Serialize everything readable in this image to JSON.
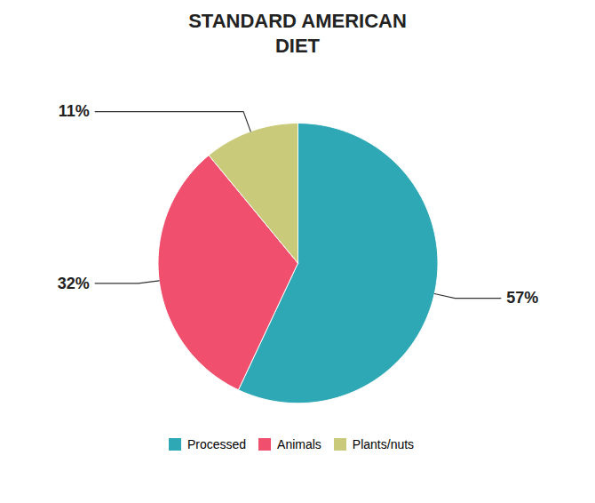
{
  "chart_data": {
    "type": "pie",
    "title": "STANDARD AMERICAN\nDIET",
    "categories": [
      "Processed",
      "Animals",
      "Plants/nuts"
    ],
    "values": [
      57,
      32,
      11
    ],
    "value_labels": [
      "57%",
      "32%",
      "11%"
    ],
    "colors": [
      "#2fa8b5",
      "#f0506e",
      "#c9ca7a"
    ],
    "data_labels": true,
    "legend": "bottom"
  }
}
